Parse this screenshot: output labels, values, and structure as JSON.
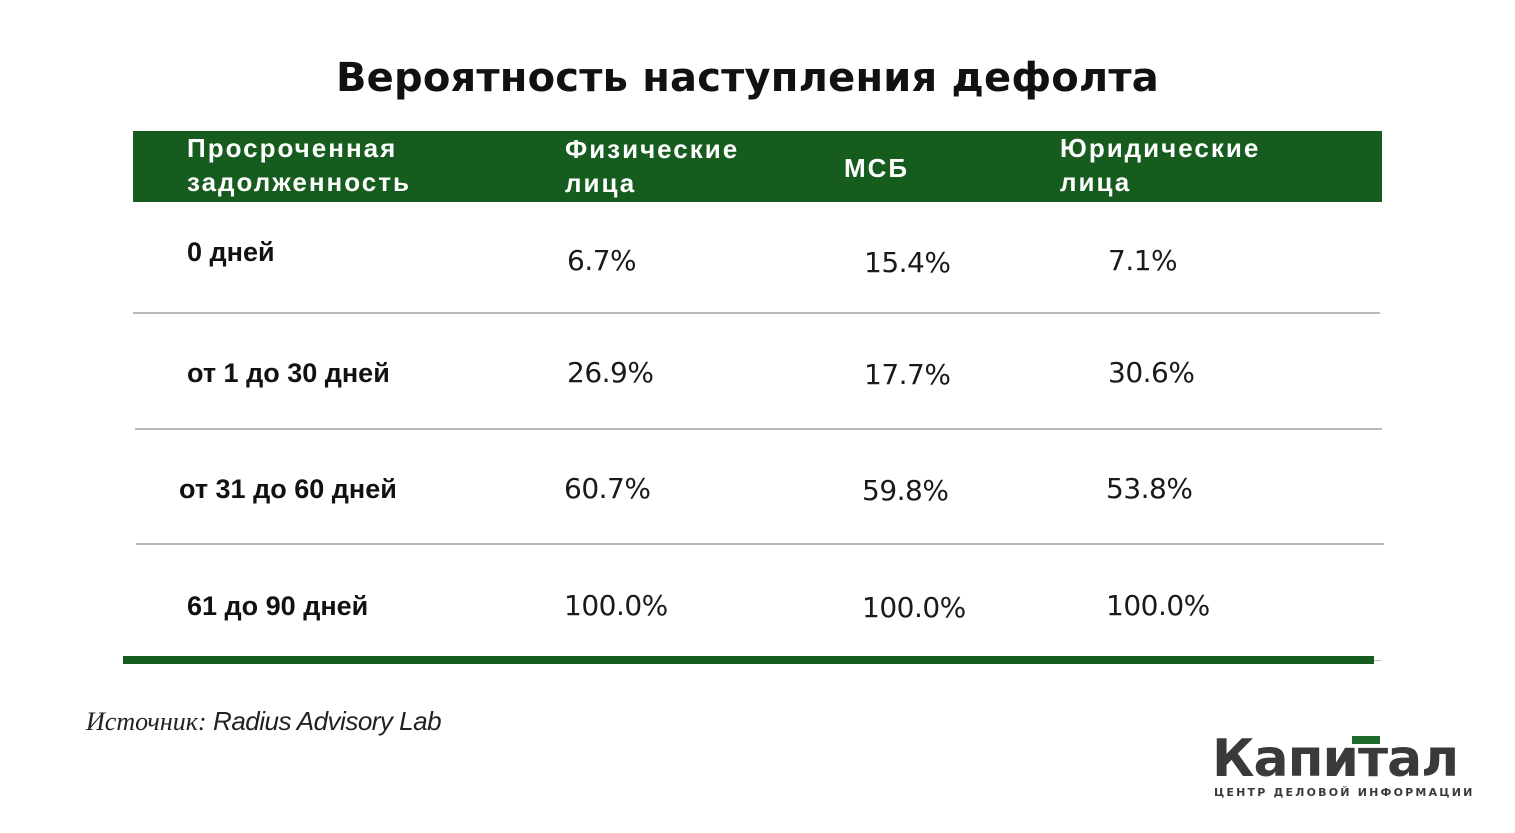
{
  "title": "Вероятность наступления дефолта",
  "colors": {
    "header_bg": "#155c1e",
    "header_text": "#ffffff",
    "bottom_rule": "#155c1e",
    "divider": "#b8b8b8",
    "logo_accent": "#1d6b2a"
  },
  "table": {
    "headers": [
      {
        "line1": "Просроченная",
        "line2": "задолженность"
      },
      {
        "line1": "Физические",
        "line2": "лица"
      },
      {
        "line1": "МСБ",
        "line2": ""
      },
      {
        "line1": "Юридические",
        "line2": "лица"
      }
    ],
    "rows": [
      {
        "label": "0 дней",
        "values": [
          "6.7%",
          "15.4%",
          "7.1%"
        ]
      },
      {
        "label": "от 1 до 30 дней",
        "values": [
          "26.9%",
          "17.7%",
          "30.6%"
        ]
      },
      {
        "label": "от 31 до 60 дней",
        "values": [
          "60.7%",
          "59.8%",
          "53.8%"
        ]
      },
      {
        "label": "61 до 90 дней",
        "values": [
          "100.0%",
          "100.0%",
          "100.0%"
        ]
      }
    ]
  },
  "source": {
    "label": "Источник:",
    "value": "Radius Advisory Lab"
  },
  "logo": {
    "name": "Капитал",
    "tagline": "ЦЕНТР ДЕЛОВОЙ ИНФОРМАЦИИ"
  }
}
